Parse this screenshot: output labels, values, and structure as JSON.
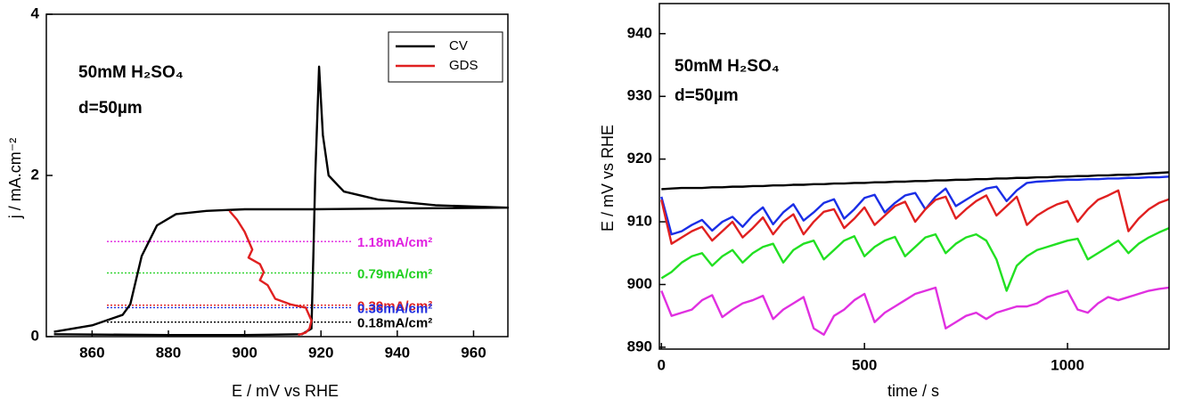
{
  "chart_data": [
    {
      "type": "line",
      "texts": [
        "50mM H₂SO₄",
        "d=50µm"
      ],
      "x_label": "E / mV vs RHE",
      "y_label": "j / mA.cm⁻²",
      "xlim": [
        848,
        969
      ],
      "xticks": [
        860,
        880,
        900,
        920,
        940,
        960
      ],
      "ylim": [
        0,
        4
      ],
      "yticks": [
        0,
        2,
        4
      ],
      "legend": "upper right",
      "series": [
        {
          "name": "CV",
          "color": "#000000",
          "x": [
            850,
            880,
            900,
            915,
            917.5,
            918,
            918.5,
            919.5,
            920.5,
            922,
            926,
            935,
            950,
            969,
            940,
            918,
            900,
            890,
            882,
            877,
            873,
            870,
            868,
            860,
            850
          ],
          "values": [
            0.03,
            0.02,
            0.02,
            0.03,
            0.1,
            1.0,
            2.0,
            3.35,
            2.5,
            2.0,
            1.8,
            1.7,
            1.63,
            1.6,
            1.59,
            1.58,
            1.58,
            1.56,
            1.52,
            1.38,
            1.0,
            0.4,
            0.27,
            0.14,
            0.06
          ]
        },
        {
          "name": "GDS",
          "color": "#e02020",
          "x": [
            896,
            898,
            900,
            902,
            901,
            904,
            905,
            904,
            906,
            908,
            912,
            916,
            917.5,
            917,
            916,
            914
          ],
          "values": [
            1.56,
            1.45,
            1.3,
            1.08,
            0.98,
            0.9,
            0.8,
            0.7,
            0.64,
            0.47,
            0.4,
            0.36,
            0.2,
            0.1,
            0.05,
            0.02
          ]
        }
      ],
      "reference_lines": [
        {
          "value": 1.18,
          "label": "1.18mA/cm²",
          "color": "#e020e0"
        },
        {
          "value": 0.79,
          "label": "0.79mA/cm²",
          "color": "#20d020"
        },
        {
          "value": 0.39,
          "label": "0.39mA/cm²",
          "color": "#e02020"
        },
        {
          "value": 0.36,
          "label": "0.36mA/cm²",
          "color": "#2030e0"
        },
        {
          "value": 0.18,
          "label": "0.18mA/cm²",
          "color": "#000000"
        }
      ]
    },
    {
      "type": "line",
      "texts": [
        "50mM H₂SO₄",
        "d=50µm"
      ],
      "x_label": "time / s",
      "y_label": "E / mV vs RHE",
      "xlim": [
        -5,
        1250
      ],
      "xticks": [
        0,
        500,
        1000
      ],
      "ylim": [
        889.7,
        944.8
      ],
      "yticks": [
        890,
        900,
        910,
        920,
        930,
        940
      ],
      "x": [
        0,
        25,
        50,
        75,
        100,
        125,
        150,
        175,
        200,
        225,
        250,
        275,
        300,
        325,
        350,
        375,
        400,
        425,
        450,
        475,
        500,
        525,
        550,
        575,
        600,
        625,
        650,
        675,
        700,
        725,
        750,
        775,
        800,
        825,
        850,
        875,
        900,
        925,
        950,
        975,
        1000,
        1025,
        1050,
        1075,
        1100,
        1125,
        1150,
        1175,
        1200,
        1225,
        1250
      ],
      "series": [
        {
          "color": "#000000",
          "values": [
            915.2,
            915.3,
            915.4,
            915.4,
            915.4,
            915.5,
            915.5,
            915.6,
            915.6,
            915.7,
            915.7,
            915.8,
            915.8,
            915.9,
            915.9,
            916.0,
            916.0,
            916.1,
            916.1,
            916.2,
            916.2,
            916.3,
            916.3,
            916.4,
            916.4,
            916.5,
            916.5,
            916.6,
            916.6,
            916.7,
            916.7,
            916.8,
            916.8,
            916.9,
            916.9,
            917.0,
            917.0,
            917.1,
            917.1,
            917.2,
            917.2,
            917.3,
            917.3,
            917.4,
            917.4,
            917.5,
            917.5,
            917.6,
            917.7,
            917.8,
            917.9
          ]
        },
        {
          "color": "#1a2ee6",
          "values": [
            914,
            908,
            908.5,
            909.5,
            910.3,
            908.6,
            910,
            910.8,
            909.2,
            911,
            912.3,
            909.6,
            911.5,
            912.8,
            910.2,
            911.5,
            913,
            913.6,
            910.5,
            912,
            913.8,
            914.3,
            911.5,
            913,
            914.2,
            914.6,
            912,
            914,
            915.3,
            912.5,
            913.5,
            914.5,
            915.3,
            915.6,
            913.3,
            915,
            916.2,
            916.4,
            916.5,
            916.6,
            916.7,
            916.7,
            916.8,
            916.8,
            916.9,
            916.9,
            917,
            917,
            917.1,
            917.1,
            917.2
          ]
        },
        {
          "color": "#e02020",
          "values": [
            913.5,
            906.5,
            907.5,
            908.5,
            909.2,
            907,
            908.5,
            910,
            907.5,
            909,
            910.7,
            908,
            910,
            911.2,
            908,
            910,
            911.6,
            912,
            909,
            910.5,
            912.3,
            909.5,
            911,
            912.5,
            913.2,
            910,
            912,
            913.5,
            914,
            910.5,
            912,
            913.3,
            914.2,
            911,
            912.5,
            914,
            909.5,
            911,
            912,
            912.8,
            913.3,
            910,
            912,
            913.5,
            914.2,
            915,
            908.5,
            910.5,
            912,
            913,
            913.6
          ]
        },
        {
          "color": "#22e022",
          "values": [
            901,
            902,
            903.5,
            904.5,
            905,
            903,
            904.5,
            905.5,
            903.5,
            905,
            906,
            906.5,
            903.5,
            905.5,
            906.5,
            907,
            904,
            905.5,
            907,
            907.7,
            904.5,
            906,
            907,
            907.6,
            904.5,
            906,
            907.5,
            908,
            905,
            906.5,
            907.5,
            908,
            907,
            904,
            899,
            903,
            904.5,
            905.5,
            906,
            906.5,
            907,
            907.3,
            904,
            905,
            906,
            907,
            905,
            906.5,
            907.5,
            908.3,
            909
          ]
        },
        {
          "color": "#e030e0",
          "values": [
            899,
            895,
            895.5,
            896,
            897.5,
            898.3,
            894.8,
            896,
            897,
            897.5,
            898.2,
            894.5,
            896,
            897,
            898,
            893,
            892,
            895,
            896,
            897.5,
            898.5,
            894,
            895.5,
            896.5,
            897.5,
            898.5,
            899,
            899.5,
            893,
            894,
            895,
            895.5,
            894.5,
            895.5,
            896,
            896.5,
            896.5,
            897,
            898,
            898.5,
            899,
            896,
            895.5,
            897,
            898,
            897.5,
            898,
            898.5,
            899,
            899.3,
            899.5
          ]
        }
      ]
    }
  ]
}
